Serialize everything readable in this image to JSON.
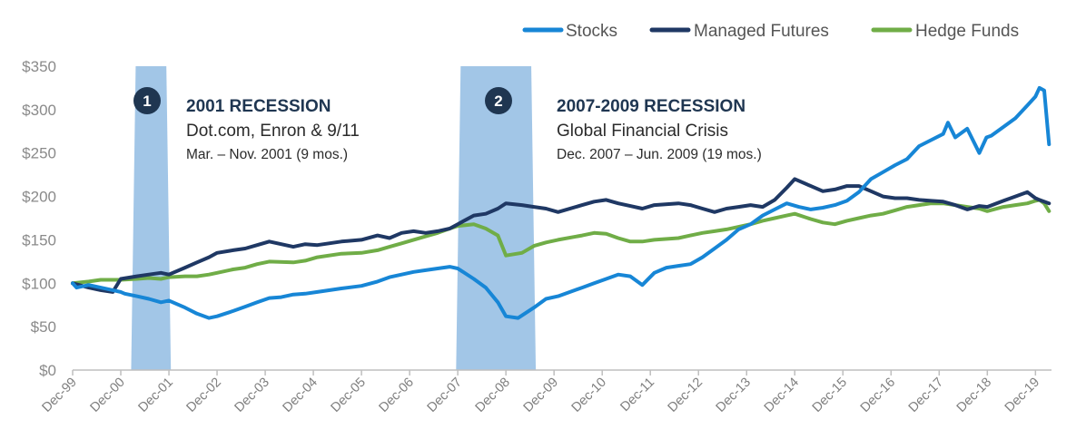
{
  "chart_data": {
    "type": "line",
    "title": "",
    "xlabel": "",
    "ylabel": "",
    "ylim": [
      0,
      350
    ],
    "y_ticks": [
      "$0",
      "$50",
      "$100",
      "$150",
      "$200",
      "$250",
      "$300",
      "$350"
    ],
    "y_tick_values": [
      0,
      50,
      100,
      150,
      200,
      250,
      300,
      350
    ],
    "x_range": [
      1999.917,
      2020.25
    ],
    "x_ticks": [
      "Dec-99",
      "Dec-00",
      "Dec-01",
      "Dec-02",
      "Dec-03",
      "Dec-04",
      "Dec-05",
      "Dec-06",
      "Dec-07",
      "Dec-08",
      "Dec-09",
      "Dec-10",
      "Dec-11",
      "Dec-12",
      "Dec-13",
      "Dec-14",
      "Dec-15",
      "Dec-16",
      "Dec-17",
      "Dec-18",
      "Dec-19"
    ],
    "x_tick_values": [
      1999.917,
      2000.917,
      2001.917,
      2002.917,
      2003.917,
      2004.917,
      2005.917,
      2006.917,
      2007.917,
      2008.917,
      2009.917,
      2010.917,
      2011.917,
      2012.917,
      2013.917,
      2014.917,
      2015.917,
      2016.917,
      2017.917,
      2018.917,
      2019.917
    ],
    "legend_position": "top-right",
    "series": [
      {
        "name": "Stocks",
        "color": "#1786d6",
        "x": [
          1999.917,
          2000.0,
          2000.25,
          2000.5,
          2000.75,
          2000.917,
          2001.0,
          2001.25,
          2001.5,
          2001.75,
          2001.917,
          2002.25,
          2002.5,
          2002.75,
          2002.917,
          2003.25,
          2003.5,
          2003.75,
          2004.0,
          2004.25,
          2004.5,
          2004.75,
          2005.0,
          2005.5,
          2005.917,
          2006.25,
          2006.5,
          2006.75,
          2007.0,
          2007.25,
          2007.5,
          2007.75,
          2007.917,
          2008.25,
          2008.5,
          2008.75,
          2008.917,
          2009.17,
          2009.5,
          2009.75,
          2010.0,
          2010.5,
          2010.75,
          2011.0,
          2011.25,
          2011.5,
          2011.75,
          2012.0,
          2012.25,
          2012.5,
          2012.75,
          2013.0,
          2013.25,
          2013.5,
          2013.75,
          2014.0,
          2014.25,
          2014.5,
          2014.75,
          2015.0,
          2015.25,
          2015.5,
          2015.75,
          2016.0,
          2016.25,
          2016.5,
          2016.75,
          2017.0,
          2017.25,
          2017.5,
          2017.75,
          2018.0,
          2018.1,
          2018.25,
          2018.5,
          2018.75,
          2018.9,
          2019.0,
          2019.25,
          2019.5,
          2019.75,
          2019.917,
          2020.0,
          2020.1,
          2020.2
        ],
        "values": [
          100,
          95,
          98,
          95,
          92,
          90,
          88,
          85,
          82,
          78,
          80,
          72,
          65,
          60,
          62,
          68,
          73,
          78,
          83,
          84,
          87,
          88,
          90,
          94,
          97,
          102,
          107,
          110,
          113,
          115,
          117,
          119,
          117,
          105,
          95,
          78,
          62,
          60,
          72,
          82,
          85,
          95,
          100,
          105,
          110,
          108,
          98,
          112,
          118,
          120,
          122,
          130,
          140,
          150,
          162,
          168,
          178,
          185,
          192,
          188,
          185,
          187,
          190,
          195,
          205,
          220,
          228,
          236,
          243,
          258,
          265,
          272,
          285,
          268,
          278,
          250,
          268,
          270,
          280,
          290,
          305,
          315,
          325,
          322,
          260
        ]
      },
      {
        "name": "Managed Futures",
        "color": "#1f3864",
        "x": [
          1999.917,
          2000.25,
          2000.5,
          2000.75,
          2000.917,
          2001.25,
          2001.5,
          2001.75,
          2001.917,
          2002.25,
          2002.5,
          2002.75,
          2002.917,
          2003.25,
          2003.5,
          2003.75,
          2004.0,
          2004.5,
          2004.75,
          2005.0,
          2005.5,
          2005.917,
          2006.25,
          2006.5,
          2006.75,
          2007.0,
          2007.25,
          2007.5,
          2007.75,
          2007.917,
          2008.25,
          2008.5,
          2008.75,
          2008.917,
          2009.25,
          2009.5,
          2009.75,
          2010.0,
          2010.5,
          2010.75,
          2011.0,
          2011.25,
          2011.5,
          2011.75,
          2012.0,
          2012.5,
          2012.75,
          2013.0,
          2013.25,
          2013.5,
          2013.75,
          2014.0,
          2014.25,
          2014.5,
          2014.75,
          2014.917,
          2015.25,
          2015.5,
          2015.75,
          2016.0,
          2016.25,
          2016.5,
          2016.75,
          2017.0,
          2017.25,
          2017.5,
          2017.75,
          2018.0,
          2018.25,
          2018.5,
          2018.75,
          2018.917,
          2019.25,
          2019.5,
          2019.75,
          2019.917,
          2020.0,
          2020.2
        ],
        "values": [
          100,
          95,
          92,
          90,
          105,
          108,
          110,
          112,
          110,
          118,
          124,
          130,
          135,
          138,
          140,
          144,
          148,
          142,
          145,
          144,
          148,
          150,
          155,
          152,
          158,
          160,
          158,
          160,
          163,
          168,
          178,
          180,
          186,
          192,
          190,
          188,
          186,
          182,
          190,
          194,
          196,
          192,
          189,
          186,
          190,
          192,
          190,
          186,
          182,
          186,
          188,
          190,
          188,
          196,
          210,
          220,
          212,
          206,
          208,
          212,
          212,
          206,
          200,
          198,
          198,
          196,
          195,
          194,
          190,
          185,
          189,
          188,
          195,
          200,
          205,
          198,
          196,
          192
        ]
      },
      {
        "name": "Hedge Funds",
        "color": "#70ad47",
        "x": [
          1999.917,
          2000.25,
          2000.5,
          2000.75,
          2000.917,
          2001.25,
          2001.5,
          2001.75,
          2001.917,
          2002.25,
          2002.5,
          2002.75,
          2002.917,
          2003.25,
          2003.5,
          2003.75,
          2004.0,
          2004.5,
          2004.75,
          2005.0,
          2005.5,
          2005.917,
          2006.25,
          2006.5,
          2006.75,
          2007.0,
          2007.25,
          2007.5,
          2007.75,
          2007.917,
          2008.25,
          2008.5,
          2008.75,
          2008.917,
          2009.25,
          2009.5,
          2009.75,
          2010.0,
          2010.5,
          2010.75,
          2011.0,
          2011.25,
          2011.5,
          2011.75,
          2012.0,
          2012.5,
          2012.75,
          2013.0,
          2013.25,
          2013.5,
          2013.75,
          2014.0,
          2014.25,
          2014.5,
          2014.75,
          2014.917,
          2015.25,
          2015.5,
          2015.75,
          2016.0,
          2016.25,
          2016.5,
          2016.75,
          2017.0,
          2017.25,
          2017.5,
          2017.75,
          2018.0,
          2018.25,
          2018.5,
          2018.75,
          2018.917,
          2019.25,
          2019.5,
          2019.75,
          2019.917,
          2020.0,
          2020.1,
          2020.2
        ],
        "values": [
          100,
          102,
          104,
          104,
          104,
          105,
          106,
          105,
          107,
          108,
          108,
          110,
          112,
          116,
          118,
          122,
          125,
          124,
          126,
          130,
          134,
          135,
          138,
          142,
          146,
          150,
          154,
          158,
          163,
          166,
          168,
          163,
          155,
          132,
          135,
          143,
          147,
          150,
          155,
          158,
          157,
          152,
          148,
          148,
          150,
          152,
          155,
          158,
          160,
          162,
          165,
          168,
          172,
          175,
          178,
          180,
          174,
          170,
          168,
          172,
          175,
          178,
          180,
          184,
          188,
          190,
          192,
          192,
          190,
          188,
          186,
          183,
          188,
          190,
          192,
          195,
          196,
          192,
          183
        ]
      }
    ],
    "recessions": [
      {
        "number": "1",
        "title": "2001 RECESSION",
        "subtitle": "Dot.com, Enron & 9/11",
        "dates": "Mar. – Nov. 2001 (9 mos.)",
        "start": 2001.17,
        "end": 2001.92,
        "color": "#9dc3e6",
        "badge_color": "#1f3651"
      },
      {
        "number": "2",
        "title": "2007-2009 RECESSION",
        "subtitle": "Global Financial Crisis",
        "dates": "Dec. 2007 – Jun. 2009 (19 mos.)",
        "start": 2007.92,
        "end": 2009.5,
        "color": "#9dc3e6",
        "badge_color": "#1f3651"
      }
    ],
    "axis_color": "#bfbfbf"
  }
}
